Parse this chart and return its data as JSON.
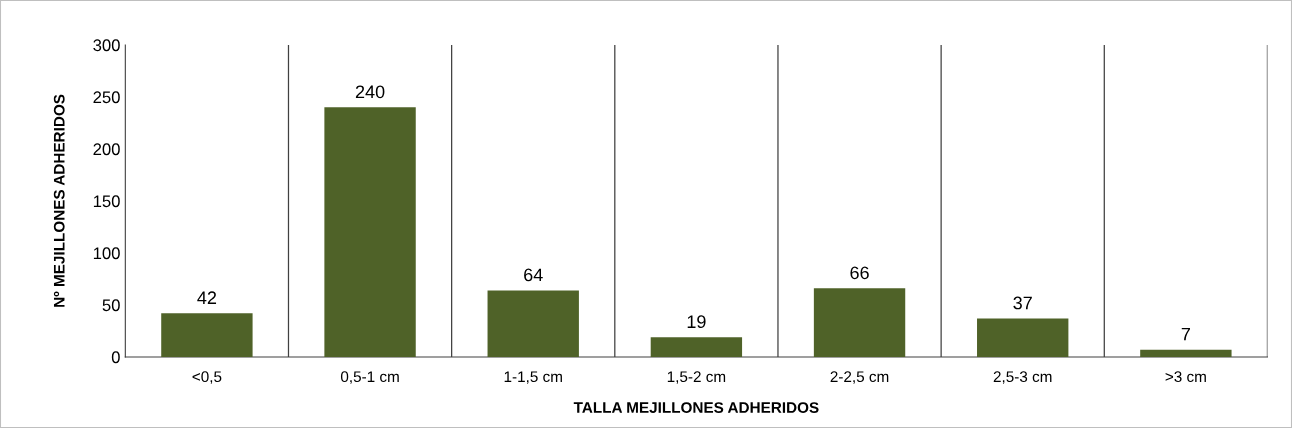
{
  "chart_data": {
    "type": "bar",
    "categories": [
      "<0,5",
      "0,5-1 cm",
      "1-1,5 cm",
      "1,5-2 cm",
      "2-2,5 cm",
      "2,5-3 cm",
      ">3 cm"
    ],
    "values": [
      42,
      240,
      64,
      19,
      66,
      37,
      7
    ],
    "color": "#4f6228",
    "xlabel": "TALLA MEJILLONES ADHERIDOS",
    "ylabel": "Nº MEJILLONES ADHERIDOS",
    "ylim": [
      0,
      300
    ],
    "yticks": [
      0,
      50,
      100,
      150,
      200,
      250,
      300
    ],
    "grid": "x",
    "data_labels": true
  }
}
